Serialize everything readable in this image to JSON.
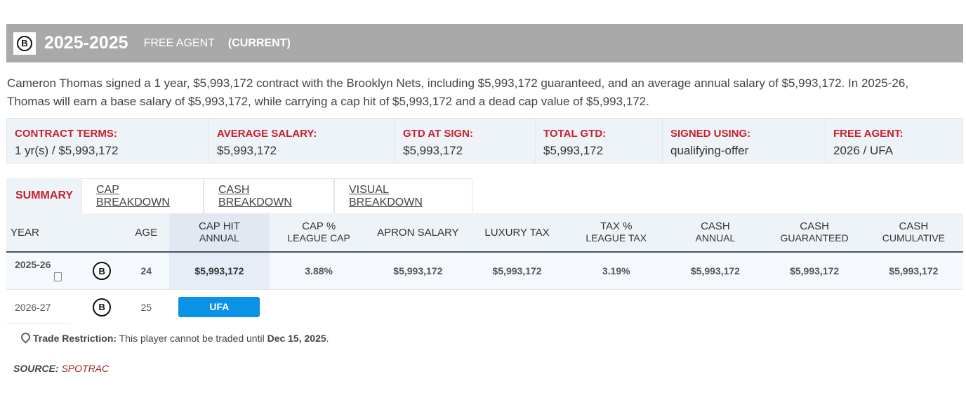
{
  "header": {
    "years": "2025-2025",
    "status": "FREE AGENT",
    "current": "(CURRENT)"
  },
  "description": "Cameron Thomas signed a 1 year, $5,993,172 contract with the Brooklyn Nets, including $5,993,172 guaranteed, and an average annual salary of $5,993,172. In 2025-26, Thomas will earn a base salary of $5,993,172, while carrying a cap hit of $5,993,172 and a dead cap value of $5,993,172.",
  "terms": [
    {
      "label": "CONTRACT TERMS:",
      "value": "1 yr(s) / $5,993,172"
    },
    {
      "label": "AVERAGE SALARY:",
      "value": "$5,993,172"
    },
    {
      "label": "GTD AT SIGN:",
      "value": "$5,993,172"
    },
    {
      "label": "TOTAL GTD:",
      "value": "$5,993,172"
    },
    {
      "label": "SIGNED USING:",
      "value": "qualifying-offer"
    },
    {
      "label": "FREE AGENT:",
      "value": "2026 / UFA"
    }
  ],
  "tabs": [
    "SUMMARY",
    "CAP BREAKDOWN",
    "CASH BREAKDOWN",
    "VISUAL BREAKDOWN"
  ],
  "table": {
    "headers": [
      [
        "YEAR",
        ""
      ],
      [
        "",
        ""
      ],
      [
        "AGE",
        ""
      ],
      [
        "CAP HIT",
        "ANNUAL"
      ],
      [
        "CAP %",
        "LEAGUE CAP"
      ],
      [
        "APRON SALARY",
        ""
      ],
      [
        "LUXURY TAX",
        ""
      ],
      [
        "TAX %",
        "LEAGUE TAX"
      ],
      [
        "CASH",
        "ANNUAL"
      ],
      [
        "CASH",
        "GUARANTEED"
      ],
      [
        "CASH",
        "CUMULATIVE"
      ]
    ],
    "row1": {
      "year": "2025-26",
      "age": "24",
      "cap_hit": "$5,993,172",
      "cap_pct": "3.88%",
      "apron": "$5,993,172",
      "lux_tax": "$5,993,172",
      "tax_pct": "3.19%",
      "cash_annual": "$5,993,172",
      "cash_gtd": "$5,993,172",
      "cash_cum": "$5,993,172"
    },
    "row2": {
      "year": "2026-27",
      "age": "25",
      "status": "UFA"
    }
  },
  "trade": {
    "label": "Trade Restriction:",
    "text": "This player cannot be traded until",
    "date": "Dec 15, 2025",
    "end": "."
  },
  "source": {
    "label": "SOURCE:",
    "name": "SPOTRAC"
  },
  "colors": {
    "accent": "#c8202f",
    "ufa": "#0a92e6",
    "header": "#a9a9a9"
  }
}
